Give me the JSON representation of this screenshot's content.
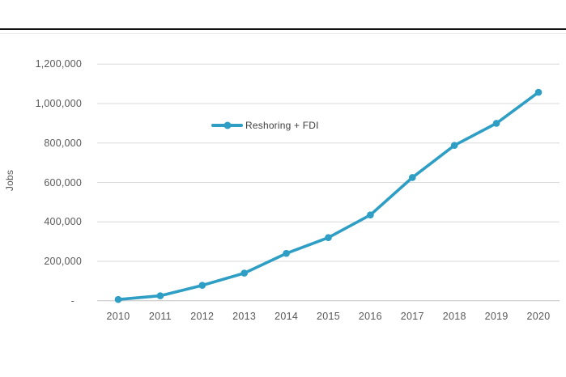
{
  "chart_data": {
    "type": "line",
    "title": "",
    "xlabel": "",
    "ylabel": "Jobs",
    "categories": [
      "2010",
      "2011",
      "2012",
      "2013",
      "2014",
      "2015",
      "2016",
      "2017",
      "2018",
      "2019",
      "2020"
    ],
    "series": [
      {
        "name": "Reshoring + FDI",
        "values": [
          6000,
          25000,
          78000,
          140000,
          240000,
          320000,
          435000,
          625000,
          788000,
          900000,
          1057000
        ]
      }
    ],
    "ylim": [
      0,
      1200000
    ],
    "ytick_labels": [
      "1,200,000",
      "1,000,000",
      "800,000",
      "600,000",
      "400,000",
      "200,000",
      "-"
    ],
    "grid": "horizontal",
    "legend_position": "inside-upper-center-left",
    "colors": {
      "line": "#2E9EC5",
      "gridline": "#d9d9d9",
      "baseline": "#c3c3c3",
      "tick_text": "#595959",
      "legend_text": "#404040",
      "top_rule": "#121212"
    }
  }
}
